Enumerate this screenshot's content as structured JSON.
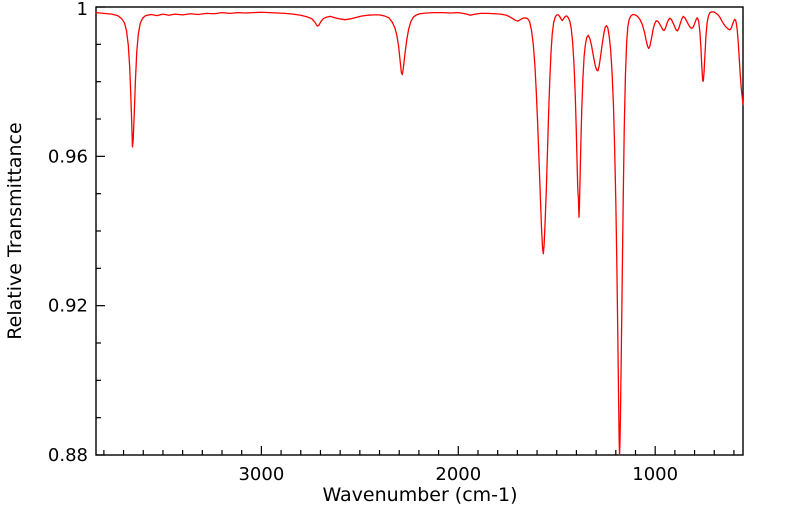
{
  "chart_data": {
    "type": "line",
    "title": "",
    "xlabel": "Wavenumber (cm-1)",
    "ylabel": "Relative Transmittance",
    "grid": false,
    "legend": "none",
    "x_axis": {
      "min": 554,
      "max": 3840,
      "reversed": true,
      "major_ticks": [
        3000,
        2000,
        1000
      ],
      "major_tick_labels": [
        "3000",
        "2000",
        "1000"
      ],
      "minor_tick_step": 100,
      "minor_tick_first": 3800,
      "minor_tick_last": 600
    },
    "y_axis": {
      "min": 0.88,
      "max": 1.0,
      "major_ticks": [
        0.88,
        0.92,
        0.96,
        1
      ],
      "major_tick_labels": [
        "0.88",
        "0.92",
        "0.96",
        "1"
      ],
      "minor_tick_step": 0.01
    },
    "line_color": "#ff0000",
    "axis_color": "#000000",
    "background_color": "#ffffff",
    "series": [
      {
        "name": "relative-transmittance-spectrum",
        "points": [
          [
            3840,
            0.9985
          ],
          [
            3800,
            0.9983
          ],
          [
            3760,
            0.9981
          ],
          [
            3730,
            0.9977
          ],
          [
            3710,
            0.9969
          ],
          [
            3695,
            0.9957
          ],
          [
            3685,
            0.9936
          ],
          [
            3676,
            0.9898
          ],
          [
            3669,
            0.984
          ],
          [
            3663,
            0.976
          ],
          [
            3658,
            0.968
          ],
          [
            3655,
            0.9625
          ],
          [
            3651,
            0.9645
          ],
          [
            3646,
            0.971
          ],
          [
            3640,
            0.98
          ],
          [
            3633,
            0.988
          ],
          [
            3625,
            0.9928
          ],
          [
            3615,
            0.9957
          ],
          [
            3602,
            0.9971
          ],
          [
            3588,
            0.9977
          ],
          [
            3560,
            0.998
          ],
          [
            3530,
            0.9977
          ],
          [
            3500,
            0.9981
          ],
          [
            3470,
            0.9978
          ],
          [
            3440,
            0.9981
          ],
          [
            3400,
            0.9979
          ],
          [
            3360,
            0.9982
          ],
          [
            3320,
            0.998
          ],
          [
            3280,
            0.9983
          ],
          [
            3240,
            0.9982
          ],
          [
            3200,
            0.9985
          ],
          [
            3160,
            0.9983
          ],
          [
            3120,
            0.9985
          ],
          [
            3080,
            0.9984
          ],
          [
            3040,
            0.9985
          ],
          [
            3000,
            0.9986
          ],
          [
            2960,
            0.9985
          ],
          [
            2920,
            0.9984
          ],
          [
            2880,
            0.9983
          ],
          [
            2840,
            0.9981
          ],
          [
            2800,
            0.9978
          ],
          [
            2770,
            0.9974
          ],
          [
            2745,
            0.9969
          ],
          [
            2728,
            0.9959
          ],
          [
            2716,
            0.9949
          ],
          [
            2708,
            0.9951
          ],
          [
            2698,
            0.9961
          ],
          [
            2685,
            0.9969
          ],
          [
            2668,
            0.9973
          ],
          [
            2650,
            0.9975
          ],
          [
            2625,
            0.9971
          ],
          [
            2600,
            0.9968
          ],
          [
            2575,
            0.9966
          ],
          [
            2550,
            0.9968
          ],
          [
            2520,
            0.9972
          ],
          [
            2490,
            0.9976
          ],
          [
            2460,
            0.9978
          ],
          [
            2430,
            0.9979
          ],
          [
            2400,
            0.9979
          ],
          [
            2375,
            0.9976
          ],
          [
            2352,
            0.9971
          ],
          [
            2335,
            0.9959
          ],
          [
            2322,
            0.9944
          ],
          [
            2312,
            0.9924
          ],
          [
            2303,
            0.9894
          ],
          [
            2295,
            0.9854
          ],
          [
            2289,
            0.9824
          ],
          [
            2284,
            0.9819
          ],
          [
            2279,
            0.9837
          ],
          [
            2271,
            0.9874
          ],
          [
            2262,
            0.9911
          ],
          [
            2252,
            0.9941
          ],
          [
            2241,
            0.9961
          ],
          [
            2228,
            0.9973
          ],
          [
            2212,
            0.9979
          ],
          [
            2195,
            0.9982
          ],
          [
            2160,
            0.9984
          ],
          [
            2120,
            0.9985
          ],
          [
            2080,
            0.9985
          ],
          [
            2040,
            0.9984
          ],
          [
            2000,
            0.9985
          ],
          [
            1965,
            0.9982
          ],
          [
            1938,
            0.9978
          ],
          [
            1915,
            0.9981
          ],
          [
            1885,
            0.9983
          ],
          [
            1850,
            0.9983
          ],
          [
            1815,
            0.9982
          ],
          [
            1785,
            0.9981
          ],
          [
            1755,
            0.9978
          ],
          [
            1730,
            0.9971
          ],
          [
            1712,
            0.9965
          ],
          [
            1698,
            0.9962
          ],
          [
            1685,
            0.9966
          ],
          [
            1672,
            0.997
          ],
          [
            1660,
            0.9971
          ],
          [
            1648,
            0.9969
          ],
          [
            1638,
            0.9961
          ],
          [
            1628,
            0.9937
          ],
          [
            1619,
            0.9899
          ],
          [
            1611,
            0.9844
          ],
          [
            1604,
            0.9774
          ],
          [
            1597,
            0.9689
          ],
          [
            1590,
            0.9589
          ],
          [
            1583,
            0.9489
          ],
          [
            1577,
            0.9404
          ],
          [
            1572,
            0.9354
          ],
          [
            1568,
            0.9339
          ],
          [
            1564,
            0.9364
          ],
          [
            1559,
            0.9424
          ],
          [
            1553,
            0.9509
          ],
          [
            1547,
            0.9614
          ],
          [
            1541,
            0.9719
          ],
          [
            1535,
            0.9809
          ],
          [
            1529,
            0.9879
          ],
          [
            1523,
            0.9927
          ],
          [
            1516,
            0.9957
          ],
          [
            1508,
            0.9973
          ],
          [
            1500,
            0.9979
          ],
          [
            1492,
            0.9979
          ],
          [
            1483,
            0.9973
          ],
          [
            1476,
            0.9966
          ],
          [
            1471,
            0.9964
          ],
          [
            1465,
            0.9969
          ],
          [
            1457,
            0.9975
          ],
          [
            1449,
            0.9976
          ],
          [
            1441,
            0.9971
          ],
          [
            1433,
            0.9961
          ],
          [
            1426,
            0.9941
          ],
          [
            1419,
            0.9904
          ],
          [
            1412,
            0.9844
          ],
          [
            1406,
            0.9764
          ],
          [
            1401,
            0.9674
          ],
          [
            1397,
            0.9589
          ],
          [
            1394,
            0.9529
          ],
          [
            1392,
            0.9501
          ],
          [
            1390,
            0.9489
          ],
          [
            1388,
            0.9454
          ],
          [
            1387,
            0.9437
          ],
          [
            1385,
            0.9461
          ],
          [
            1382,
            0.9529
          ],
          [
            1378,
            0.9624
          ],
          [
            1373,
            0.9724
          ],
          [
            1367,
            0.9809
          ],
          [
            1361,
            0.9867
          ],
          [
            1355,
            0.9897
          ],
          [
            1348,
            0.9918
          ],
          [
            1340,
            0.9924
          ],
          [
            1332,
            0.9916
          ],
          [
            1323,
            0.9896
          ],
          [
            1313,
            0.9866
          ],
          [
            1304,
            0.9842
          ],
          [
            1297,
            0.9831
          ],
          [
            1291,
            0.9829
          ],
          [
            1285,
            0.9841
          ],
          [
            1277,
            0.9869
          ],
          [
            1269,
            0.9901
          ],
          [
            1261,
            0.9928
          ],
          [
            1254,
            0.9946
          ],
          [
            1247,
            0.995
          ],
          [
            1240,
            0.9943
          ],
          [
            1233,
            0.9919
          ],
          [
            1226,
            0.9884
          ],
          [
            1219,
            0.9824
          ],
          [
            1212,
            0.9739
          ],
          [
            1206,
            0.9624
          ],
          [
            1200,
            0.9479
          ],
          [
            1195,
            0.9319
          ],
          [
            1190,
            0.9129
          ],
          [
            1186,
            0.8959
          ],
          [
            1183,
            0.8839
          ],
          [
            1181,
            0.8801
          ],
          [
            1179,
            0.8829
          ],
          [
            1176,
            0.8919
          ],
          [
            1172,
            0.9079
          ],
          [
            1167,
            0.9289
          ],
          [
            1162,
            0.9499
          ],
          [
            1157,
            0.9679
          ],
          [
            1151,
            0.9819
          ],
          [
            1145,
            0.9904
          ],
          [
            1139,
            0.9947
          ],
          [
            1132,
            0.9967
          ],
          [
            1124,
            0.9976
          ],
          [
            1114,
            0.998
          ],
          [
            1102,
            0.9979
          ],
          [
            1090,
            0.9975
          ],
          [
            1078,
            0.9967
          ],
          [
            1066,
            0.9954
          ],
          [
            1055,
            0.9934
          ],
          [
            1046,
            0.9911
          ],
          [
            1039,
            0.9895
          ],
          [
            1033,
            0.9889
          ],
          [
            1027,
            0.9895
          ],
          [
            1019,
            0.9915
          ],
          [
            1011,
            0.9939
          ],
          [
            1003,
            0.9955
          ],
          [
            995,
            0.9963
          ],
          [
            987,
            0.9962
          ],
          [
            978,
            0.9955
          ],
          [
            969,
            0.9947
          ],
          [
            961,
            0.9939
          ],
          [
            955,
            0.9937
          ],
          [
            948,
            0.9943
          ],
          [
            941,
            0.9955
          ],
          [
            933,
            0.9965
          ],
          [
            926,
            0.997
          ],
          [
            918,
            0.9967
          ],
          [
            909,
            0.9957
          ],
          [
            900,
            0.9946
          ],
          [
            893,
            0.9938
          ],
          [
            887,
            0.9936
          ],
          [
            880,
            0.9943
          ],
          [
            872,
            0.9957
          ],
          [
            864,
            0.9969
          ],
          [
            857,
            0.9975
          ],
          [
            849,
            0.9971
          ],
          [
            840,
            0.9962
          ],
          [
            831,
            0.9953
          ],
          [
            823,
            0.9946
          ],
          [
            816,
            0.9943
          ],
          [
            810,
            0.9944
          ],
          [
            803,
            0.9951
          ],
          [
            796,
            0.9961
          ],
          [
            790,
            0.9969
          ],
          [
            785,
            0.9971
          ],
          [
            779,
            0.9961
          ],
          [
            773,
            0.9934
          ],
          [
            768,
            0.9894
          ],
          [
            763,
            0.9839
          ],
          [
            759,
            0.9804
          ],
          [
            756,
            0.9801
          ],
          [
            752,
            0.9824
          ],
          [
            747,
            0.9874
          ],
          [
            742,
            0.9924
          ],
          [
            736,
            0.9959
          ],
          [
            729,
            0.9977
          ],
          [
            722,
            0.9985
          ],
          [
            713,
            0.9987
          ],
          [
            703,
            0.9987
          ],
          [
            693,
            0.9984
          ],
          [
            683,
            0.998
          ],
          [
            673,
            0.9974
          ],
          [
            664,
            0.9965
          ],
          [
            655,
            0.9957
          ],
          [
            645,
            0.9949
          ],
          [
            635,
            0.9944
          ],
          [
            627,
            0.994
          ],
          [
            620,
            0.9939
          ],
          [
            613,
            0.9944
          ],
          [
            607,
            0.9954
          ],
          [
            601,
            0.9962
          ],
          [
            596,
            0.9967
          ],
          [
            592,
            0.9965
          ],
          [
            588,
            0.9957
          ],
          [
            583,
            0.9937
          ],
          [
            578,
            0.9904
          ],
          [
            573,
            0.9861
          ],
          [
            568,
            0.9819
          ],
          [
            563,
            0.9784
          ],
          [
            558,
            0.9759
          ],
          [
            555,
            0.9744
          ],
          [
            554,
            0.9738
          ]
        ]
      }
    ]
  }
}
